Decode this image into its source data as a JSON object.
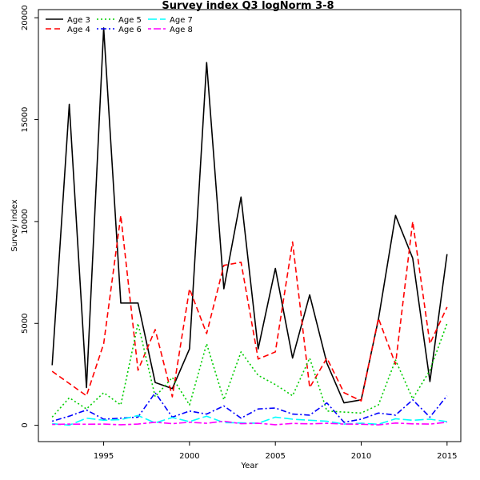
{
  "chart_data": {
    "type": "line",
    "title": "Survey index Q3 logNorm 3-8",
    "xlabel": "Year",
    "ylabel": "Survey index",
    "xlim": [
      1991.2,
      2015.8
    ],
    "ylim": [
      -800,
      20400
    ],
    "x_ticks": [
      1995,
      2000,
      2005,
      2010,
      2015
    ],
    "y_ticks": [
      0,
      5000,
      10000,
      15000,
      20000
    ],
    "grid": false,
    "legend_placement": "top-left",
    "x": [
      1992,
      1993,
      1994,
      1995,
      1996,
      1997,
      1998,
      1999,
      2000,
      2001,
      2002,
      2003,
      2004,
      2005,
      2006,
      2007,
      2008,
      2009,
      2010,
      2011,
      2012,
      2013,
      2014,
      2015
    ],
    "series": [
      {
        "name": "Age 3",
        "color": "#000000",
        "dash": "solid",
        "values": [
          2950,
          15750,
          1850,
          19500,
          6000,
          6000,
          2100,
          1800,
          3750,
          17800,
          6700,
          11200,
          3750,
          7700,
          3300,
          6400,
          3050,
          1100,
          1250,
          5200,
          10300,
          8200,
          2150,
          8400
        ]
      },
      {
        "name": "Age 4",
        "color": "#ff0000",
        "dash": "dashed",
        "values": [
          2650,
          2050,
          1450,
          4000,
          10300,
          2700,
          4700,
          1400,
          6700,
          4500,
          7850,
          8000,
          3250,
          3600,
          9000,
          1850,
          3300,
          1600,
          1200,
          5250,
          3000,
          10000,
          4000,
          5800
        ]
      },
      {
        "name": "Age 5",
        "color": "#00cd00",
        "dash": "dotted",
        "values": [
          400,
          1350,
          800,
          1600,
          1000,
          5000,
          1400,
          2350,
          1000,
          4000,
          1250,
          3600,
          2450,
          2000,
          1450,
          3300,
          700,
          650,
          600,
          1000,
          3200,
          1300,
          2700,
          5000
        ]
      },
      {
        "name": "Age 6",
        "color": "#0000ff",
        "dash": "dotdash",
        "values": [
          200,
          450,
          750,
          300,
          350,
          400,
          1600,
          400,
          700,
          550,
          950,
          350,
          800,
          850,
          550,
          500,
          1100,
          150,
          300,
          600,
          500,
          1250,
          400,
          1450
        ]
      },
      {
        "name": "Age 7",
        "color": "#00ffff",
        "dash": "longdash",
        "values": [
          80,
          10,
          350,
          250,
          280,
          480,
          120,
          380,
          180,
          450,
          130,
          120,
          100,
          400,
          300,
          250,
          200,
          60,
          100,
          50,
          320,
          250,
          300,
          180
        ]
      },
      {
        "name": "Age 8",
        "color": "#ff00ff",
        "dash": "twodash",
        "values": [
          40,
          60,
          50,
          60,
          30,
          60,
          150,
          80,
          150,
          100,
          200,
          80,
          100,
          30,
          90,
          70,
          100,
          60,
          50,
          20,
          110,
          70,
          60,
          150
        ]
      }
    ]
  }
}
